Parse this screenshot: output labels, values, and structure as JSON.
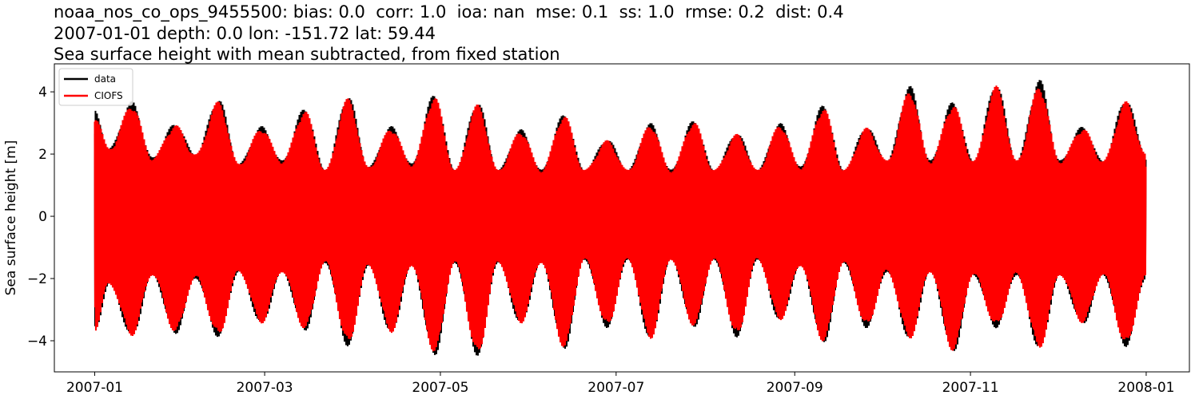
{
  "chart_data": {
    "type": "line",
    "title_lines": [
      "noaa_nos_co_ops_9455500: bias: 0.0  corr: 1.0  ioa: nan  mse: 0.1  ss: 1.0  rmse: 0.2  dist: 0.4",
      "2007-01-01 depth: 0.0 lon: -151.72 lat: 59.44",
      "Sea surface height with mean subtracted, from fixed station"
    ],
    "xlabel": "",
    "ylabel": "Sea surface height [m]",
    "x_range": [
      "2006-12-18",
      "2008-01-16"
    ],
    "ylim": [
      -5.0,
      4.9
    ],
    "x_ticks": [
      "2007-01",
      "2007-03",
      "2007-05",
      "2007-07",
      "2007-09",
      "2007-11",
      "2008-01"
    ],
    "y_ticks": [
      -4,
      -2,
      0,
      2,
      4
    ],
    "grid": false,
    "legend": {
      "placement": "top-left",
      "entries": [
        "data",
        "CIOFS"
      ]
    },
    "series": [
      {
        "name": "data",
        "color": "#000000",
        "x_start": "2007-01-01",
        "x_end": "2008-01-01",
        "envelope_dates": [
          "2007-01-01",
          "2007-01-06",
          "2007-01-14",
          "2007-01-21",
          "2007-01-29",
          "2007-02-05",
          "2007-02-13",
          "2007-02-20",
          "2007-02-28",
          "2007-03-07",
          "2007-03-15",
          "2007-03-22",
          "2007-03-30",
          "2007-04-06",
          "2007-04-14",
          "2007-04-21",
          "2007-04-29",
          "2007-05-06",
          "2007-05-14",
          "2007-05-21",
          "2007-05-29",
          "2007-06-05",
          "2007-06-13",
          "2007-06-20",
          "2007-06-28",
          "2007-07-05",
          "2007-07-13",
          "2007-07-20",
          "2007-07-28",
          "2007-08-04",
          "2007-08-12",
          "2007-08-19",
          "2007-08-27",
          "2007-09-03",
          "2007-09-11",
          "2007-09-18",
          "2007-09-26",
          "2007-10-03",
          "2007-10-11",
          "2007-10-18",
          "2007-10-26",
          "2007-11-02",
          "2007-11-10",
          "2007-11-17",
          "2007-11-25",
          "2007-12-02",
          "2007-12-10",
          "2007-12-17",
          "2007-12-25",
          "2008-01-01"
        ],
        "envelope_high": [
          3.4,
          2.2,
          3.7,
          1.9,
          3.0,
          2.0,
          3.8,
          1.7,
          2.9,
          1.8,
          3.5,
          1.5,
          3.9,
          1.6,
          2.9,
          1.7,
          3.95,
          1.5,
          3.7,
          1.5,
          2.8,
          1.5,
          3.3,
          1.5,
          2.5,
          1.5,
          3.0,
          1.5,
          3.1,
          1.5,
          2.7,
          1.5,
          3.0,
          1.6,
          3.6,
          1.5,
          2.9,
          1.8,
          4.2,
          1.8,
          3.7,
          1.8,
          4.3,
          1.8,
          4.4,
          1.8,
          2.9,
          1.8,
          3.8,
          2.0
        ],
        "envelope_low": [
          -3.8,
          -2.2,
          -3.9,
          -1.9,
          -3.8,
          -2.0,
          -3.9,
          -1.8,
          -3.5,
          -1.8,
          -3.7,
          -1.5,
          -4.2,
          -1.6,
          -3.8,
          -1.6,
          -4.5,
          -1.5,
          -4.5,
          -1.5,
          -3.5,
          -1.5,
          -4.3,
          -1.4,
          -3.6,
          -1.4,
          -4.0,
          -1.4,
          -3.6,
          -1.4,
          -3.9,
          -1.4,
          -3.4,
          -1.6,
          -4.1,
          -1.5,
          -3.6,
          -1.8,
          -4.0,
          -1.8,
          -4.4,
          -1.9,
          -3.6,
          -1.9,
          -4.3,
          -1.9,
          -3.5,
          -1.9,
          -4.2,
          -2.0
        ]
      },
      {
        "name": "CIOFS",
        "color": "#ff0000",
        "x_start": "2007-01-01",
        "x_end": "2008-01-01",
        "envelope_dates": [
          "2007-01-01",
          "2007-01-06",
          "2007-01-14",
          "2007-01-21",
          "2007-01-29",
          "2007-02-05",
          "2007-02-13",
          "2007-02-20",
          "2007-02-28",
          "2007-03-07",
          "2007-03-15",
          "2007-03-22",
          "2007-03-30",
          "2007-04-06",
          "2007-04-14",
          "2007-04-21",
          "2007-04-29",
          "2007-05-06",
          "2007-05-14",
          "2007-05-21",
          "2007-05-29",
          "2007-06-05",
          "2007-06-13",
          "2007-06-20",
          "2007-06-28",
          "2007-07-05",
          "2007-07-13",
          "2007-07-20",
          "2007-07-28",
          "2007-08-04",
          "2007-08-12",
          "2007-08-19",
          "2007-08-27",
          "2007-09-03",
          "2007-09-11",
          "2007-09-18",
          "2007-09-26",
          "2007-10-03",
          "2007-10-11",
          "2007-10-18",
          "2007-10-26",
          "2007-11-02",
          "2007-11-10",
          "2007-11-17",
          "2007-11-25",
          "2007-12-02",
          "2007-12-10",
          "2007-12-17",
          "2007-12-25",
          "2008-01-01"
        ],
        "envelope_high": [
          3.3,
          2.2,
          3.6,
          1.9,
          2.95,
          2.0,
          3.7,
          1.7,
          2.85,
          1.8,
          3.4,
          1.5,
          3.8,
          1.6,
          2.85,
          1.7,
          3.85,
          1.5,
          3.6,
          1.5,
          2.75,
          1.5,
          3.25,
          1.5,
          2.45,
          1.5,
          2.95,
          1.5,
          3.05,
          1.5,
          2.65,
          1.5,
          2.95,
          1.6,
          3.5,
          1.5,
          2.85,
          1.8,
          4.05,
          1.8,
          3.6,
          1.8,
          4.2,
          1.8,
          4.2,
          1.8,
          2.85,
          1.8,
          3.7,
          2.0
        ],
        "envelope_low": [
          -3.7,
          -2.2,
          -3.85,
          -1.9,
          -3.75,
          -2.0,
          -3.85,
          -1.8,
          -3.45,
          -1.8,
          -3.65,
          -1.5,
          -4.1,
          -1.6,
          -3.75,
          -1.6,
          -4.4,
          -1.5,
          -4.45,
          -1.5,
          -3.45,
          -1.5,
          -4.25,
          -1.4,
          -3.55,
          -1.4,
          -3.95,
          -1.4,
          -3.55,
          -1.4,
          -3.85,
          -1.4,
          -3.35,
          -1.6,
          -4.05,
          -1.5,
          -3.55,
          -1.8,
          -3.95,
          -1.8,
          -4.35,
          -1.9,
          -3.55,
          -1.9,
          -4.25,
          -1.9,
          -3.45,
          -1.9,
          -4.15,
          -2.0
        ]
      }
    ]
  }
}
